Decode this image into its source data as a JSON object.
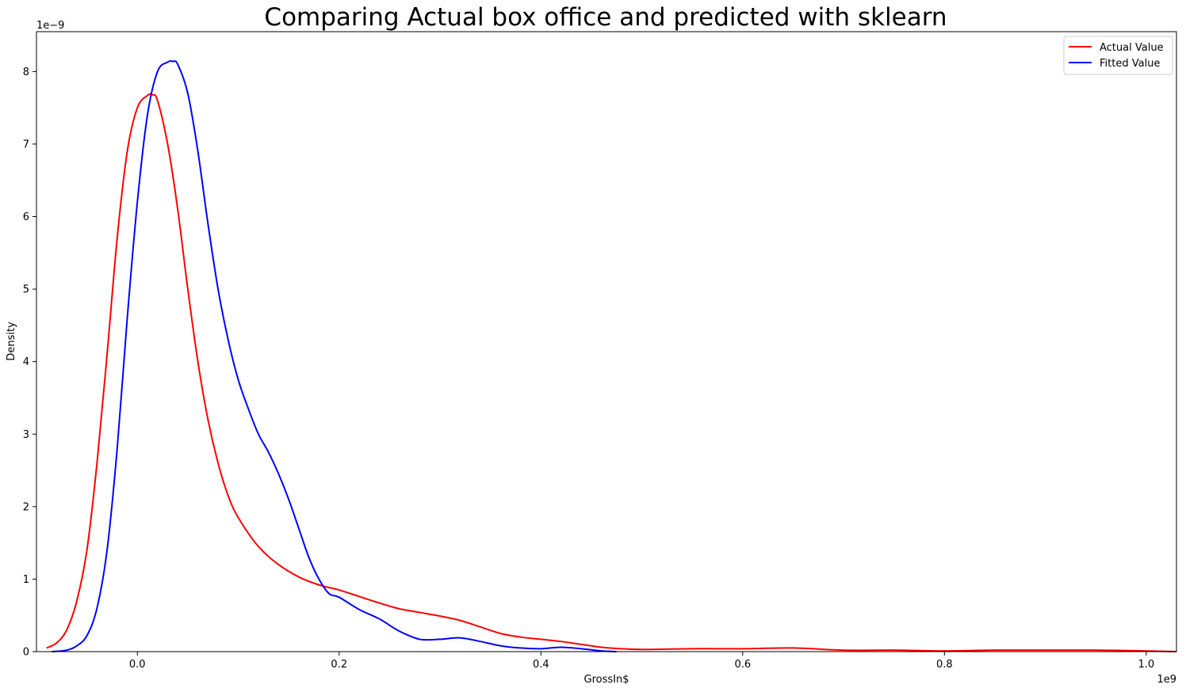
{
  "chart_data": {
    "type": "line",
    "title": "Comparing Actual box office and predicted with sklearn",
    "xlabel": "GrossIn$",
    "ylabel": "Density",
    "x_offset_label": "1e9",
    "y_offset_label": "1e−9",
    "xlim": [
      -0.1,
      1.03
    ],
    "ylim": [
      0,
      8.55
    ],
    "xticks": [
      0.0,
      0.2,
      0.4,
      0.6,
      0.8,
      1.0
    ],
    "xtick_labels": [
      "0.0",
      "0.2",
      "0.4",
      "0.6",
      "0.8",
      "1.0"
    ],
    "yticks": [
      0,
      1,
      2,
      3,
      4,
      5,
      6,
      7,
      8
    ],
    "ytick_labels": [
      "0",
      "1",
      "2",
      "3",
      "4",
      "5",
      "6",
      "7",
      "8"
    ],
    "grid": false,
    "legend_position": "top-right",
    "series": [
      {
        "name": "Actual Value",
        "color": "#ff0000",
        "x": [
          -0.09,
          -0.08,
          -0.07,
          -0.06,
          -0.05,
          -0.04,
          -0.03,
          -0.02,
          -0.01,
          0.0,
          0.01,
          0.015,
          0.02,
          0.03,
          0.04,
          0.05,
          0.06,
          0.07,
          0.08,
          0.09,
          0.1,
          0.12,
          0.14,
          0.16,
          0.18,
          0.2,
          0.22,
          0.24,
          0.26,
          0.28,
          0.3,
          0.32,
          0.34,
          0.36,
          0.38,
          0.4,
          0.42,
          0.44,
          0.46,
          0.48,
          0.5,
          0.55,
          0.6,
          0.65,
          0.7,
          0.75,
          0.8,
          0.85,
          0.9,
          0.95,
          1.0,
          1.03
        ],
        "y": [
          0.05,
          0.12,
          0.3,
          0.7,
          1.4,
          2.6,
          4.1,
          5.7,
          6.9,
          7.5,
          7.67,
          7.68,
          7.6,
          7.0,
          6.1,
          5.0,
          4.0,
          3.2,
          2.6,
          2.15,
          1.85,
          1.45,
          1.2,
          1.03,
          0.92,
          0.85,
          0.76,
          0.67,
          0.59,
          0.54,
          0.49,
          0.43,
          0.34,
          0.25,
          0.2,
          0.17,
          0.14,
          0.1,
          0.06,
          0.04,
          0.03,
          0.04,
          0.04,
          0.05,
          0.02,
          0.02,
          0.01,
          0.02,
          0.02,
          0.02,
          0.01,
          0.0
        ]
      },
      {
        "name": "Fitted Value",
        "color": "#0000ff",
        "x": [
          -0.085,
          -0.07,
          -0.06,
          -0.05,
          -0.04,
          -0.03,
          -0.02,
          -0.01,
          0.0,
          0.01,
          0.02,
          0.03,
          0.035,
          0.04,
          0.05,
          0.06,
          0.07,
          0.08,
          0.09,
          0.1,
          0.11,
          0.12,
          0.13,
          0.14,
          0.15,
          0.16,
          0.17,
          0.18,
          0.19,
          0.2,
          0.22,
          0.24,
          0.26,
          0.28,
          0.3,
          0.32,
          0.34,
          0.36,
          0.38,
          0.4,
          0.42,
          0.44,
          0.46,
          0.475
        ],
        "y": [
          0.0,
          0.02,
          0.08,
          0.22,
          0.6,
          1.4,
          2.8,
          4.6,
          6.2,
          7.4,
          8.0,
          8.13,
          8.14,
          8.1,
          7.7,
          6.9,
          5.9,
          5.0,
          4.3,
          3.75,
          3.35,
          3.0,
          2.75,
          2.45,
          2.1,
          1.7,
          1.3,
          1.0,
          0.8,
          0.75,
          0.58,
          0.45,
          0.28,
          0.17,
          0.17,
          0.19,
          0.14,
          0.08,
          0.05,
          0.04,
          0.06,
          0.04,
          0.01,
          0.0
        ]
      }
    ]
  }
}
